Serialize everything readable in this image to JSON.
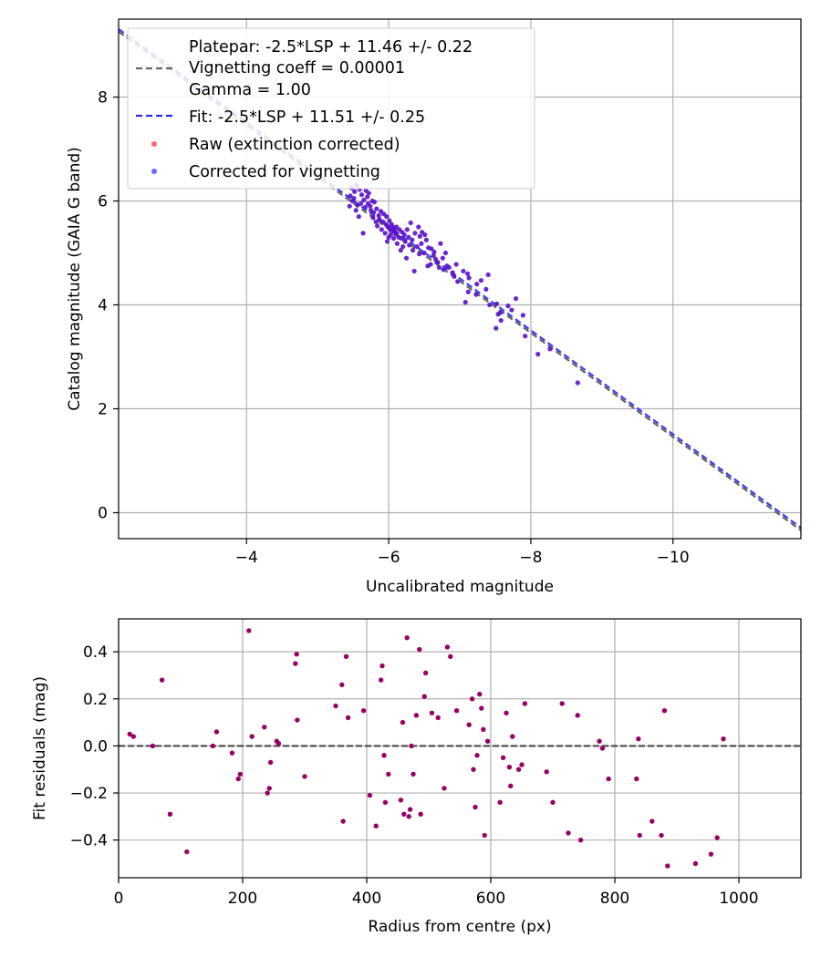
{
  "colors": {
    "raw": "#ff4444",
    "corrected": "#4444ff",
    "overlap": "#5a10c8",
    "residual": "#990066",
    "platepar_line": "#666666",
    "fit_line": "#2b2bef",
    "grid": "#b0b0b0",
    "zero_line": "#333333"
  },
  "chart_data": [
    {
      "type": "scatter",
      "xlabel": "Uncalibrated magnitude",
      "ylabel": "Catalog magnitude (GAIA G band)",
      "xlim": [
        -2.2,
        -11.8
      ],
      "ylim": [
        9.5,
        -0.5
      ],
      "x_inverted": true,
      "y_inverted": true,
      "xticks": [
        -4,
        -6,
        -8,
        -10
      ],
      "xtick_labels": [
        "−4",
        "−6",
        "−8",
        "−10"
      ],
      "yticks": [
        0,
        2,
        4,
        6,
        8
      ],
      "ytick_labels": [
        "0",
        "2",
        "4",
        "6",
        "8"
      ],
      "grid": true,
      "legend_position": "upper-left",
      "legend": [
        {
          "key": "platepar",
          "marker": "dashed-line",
          "label": "Platepar: -2.5*LSP + 11.46 +/- 0.22",
          "label_lines": [
            "Platepar: -2.5*LSP + 11.46 +/- 0.22",
            "Vignetting coeff = 0.00001",
            "Gamma = 1.00"
          ]
        },
        {
          "key": "fit",
          "marker": "dashed-line",
          "label": "Fit: -2.5*LSP + 11.51 +/- 0.25"
        },
        {
          "key": "raw",
          "marker": "dot",
          "label": "Raw (extinction corrected)"
        },
        {
          "key": "corrected",
          "marker": "dot",
          "label": "Corrected for vignetting"
        }
      ],
      "lines": [
        {
          "key": "platepar",
          "slope": 1.0,
          "intercept": 11.46,
          "style": "dashed"
        },
        {
          "key": "fit",
          "slope": 1.0,
          "intercept": 11.51,
          "style": "dashed"
        }
      ],
      "series": [
        {
          "key": "raw_and_corrected",
          "x": [
            -8.66,
            -8.27,
            -8.1,
            -7.92,
            -7.89,
            -7.79,
            -7.73,
            -7.68,
            -7.58,
            -7.57,
            -7.54,
            -7.52,
            -7.51,
            -7.42,
            -7.4,
            -7.37,
            -7.3,
            -7.24,
            -7.23,
            -7.13,
            -7.12,
            -7.11,
            -7.08,
            -7.05,
            -6.97,
            -6.95,
            -6.92,
            -6.9,
            -6.85,
            -6.82,
            -6.8,
            -6.77,
            -6.76,
            -6.73,
            -6.71,
            -6.69,
            -6.66,
            -6.64,
            -6.63,
            -6.6,
            -6.59,
            -6.56,
            -6.55,
            -6.53,
            -6.51,
            -6.5,
            -6.47,
            -6.46,
            -6.44,
            -6.43,
            -6.42,
            -6.4,
            -6.37,
            -6.36,
            -6.34,
            -6.33,
            -6.31,
            -6.29,
            -6.28,
            -6.26,
            -6.25,
            -6.23,
            -6.22,
            -6.2,
            -6.19,
            -6.18,
            -6.17,
            -6.15,
            -6.14,
            -6.12,
            -6.11,
            -6.1,
            -6.09,
            -6.08,
            -6.07,
            -6.06,
            -6.05,
            -6.04,
            -6.03,
            -6.02,
            -6.01,
            -6.0,
            -5.99,
            -5.98,
            -5.97,
            -5.96,
            -5.95,
            -5.93,
            -5.92,
            -5.9,
            -5.89,
            -5.87,
            -5.86,
            -5.84,
            -5.83,
            -5.82,
            -5.8,
            -5.79,
            -5.78,
            -5.77,
            -5.75,
            -5.74,
            -5.72,
            -5.71,
            -5.7,
            -5.68,
            -5.67,
            -5.65,
            -5.64,
            -5.62,
            -5.61,
            -5.59,
            -5.58,
            -5.56,
            -5.55,
            -5.54,
            -5.52,
            -5.51,
            -5.49,
            -5.48,
            -5.46,
            -5.45
          ],
          "y": [
            2.5,
            3.15,
            3.05,
            3.4,
            3.8,
            4.12,
            3.9,
            3.98,
            3.7,
            3.85,
            3.82,
            4.02,
            3.55,
            4.0,
            4.58,
            4.3,
            4.47,
            4.4,
            4.2,
            4.52,
            4.25,
            4.6,
            4.05,
            4.65,
            4.45,
            4.78,
            4.55,
            4.62,
            4.72,
            4.75,
            5.0,
            4.68,
            4.9,
            5.18,
            4.72,
            4.82,
            4.88,
            5.02,
            4.95,
            5.08,
            4.78,
            5.1,
            4.75,
            5.25,
            5.35,
            5.0,
            5.4,
            5.18,
            5.32,
            4.98,
            5.5,
            5.12,
            5.38,
            4.65,
            5.05,
            5.25,
            5.58,
            5.15,
            5.3,
            5.45,
            4.9,
            5.22,
            5.35,
            5.12,
            5.4,
            5.28,
            5.05,
            5.45,
            5.3,
            5.18,
            5.5,
            5.36,
            5.4,
            5.45,
            5.28,
            5.5,
            5.42,
            5.55,
            5.35,
            5.45,
            5.62,
            5.3,
            5.5,
            5.22,
            5.7,
            5.55,
            5.38,
            5.75,
            5.6,
            5.45,
            5.8,
            5.65,
            5.72,
            5.52,
            5.85,
            5.6,
            5.98,
            5.78,
            5.68,
            6.0,
            5.82,
            5.9,
            6.15,
            5.95,
            6.08,
            6.2,
            5.88,
            6.02,
            5.38,
            6.12,
            5.95,
            6.22,
            5.7,
            5.92,
            6.3,
            5.82,
            6.18,
            6.05,
            6.0,
            6.25,
            6.1,
            5.9
          ]
        }
      ]
    },
    {
      "type": "scatter",
      "xlabel": "Radius from centre (px)",
      "ylabel": "Fit residuals (mag)",
      "xlim": [
        0,
        1100
      ],
      "ylim": [
        -0.56,
        0.54
      ],
      "xticks": [
        0,
        200,
        400,
        600,
        800,
        1000
      ],
      "xtick_labels": [
        "0",
        "200",
        "400",
        "600",
        "800",
        "1000"
      ],
      "yticks": [
        -0.4,
        -0.2,
        0.0,
        0.2,
        0.4
      ],
      "ytick_labels": [
        "−0.4",
        "−0.2",
        "0.0",
        "0.2",
        "0.4"
      ],
      "grid": true,
      "reference_line": {
        "y": 0.0,
        "style": "dashed"
      },
      "series": [
        {
          "key": "residuals",
          "x": [
            18,
            24,
            55,
            70,
            83,
            110,
            152,
            158,
            183,
            193,
            196,
            210,
            215,
            235,
            240,
            243,
            245,
            255,
            258,
            285,
            287,
            288,
            300,
            350,
            360,
            362,
            367,
            370,
            395,
            405,
            415,
            423,
            425,
            428,
            430,
            435,
            455,
            458,
            460,
            465,
            468,
            470,
            472,
            475,
            480,
            485,
            487,
            493,
            495,
            505,
            515,
            525,
            530,
            535,
            545,
            565,
            570,
            572,
            575,
            578,
            582,
            585,
            588,
            590,
            595,
            615,
            620,
            625,
            630,
            632,
            635,
            645,
            650,
            655,
            690,
            700,
            715,
            725,
            740,
            745,
            780,
            775,
            790,
            835,
            838,
            840,
            860,
            875,
            880,
            885,
            930,
            955,
            965,
            975
          ],
          "y": [
            0.05,
            0.04,
            0.0,
            0.28,
            -0.29,
            -0.45,
            0.0,
            0.06,
            -0.03,
            -0.14,
            -0.12,
            0.49,
            0.04,
            0.08,
            -0.2,
            -0.18,
            -0.07,
            0.02,
            0.01,
            0.35,
            0.39,
            0.11,
            -0.13,
            0.17,
            0.26,
            -0.32,
            0.38,
            0.12,
            0.15,
            -0.21,
            -0.34,
            0.28,
            0.34,
            -0.04,
            -0.24,
            -0.12,
            -0.23,
            0.1,
            -0.29,
            0.46,
            -0.3,
            -0.27,
            0.0,
            -0.12,
            0.13,
            0.41,
            -0.29,
            0.21,
            0.31,
            0.14,
            0.12,
            -0.18,
            0.42,
            0.38,
            0.15,
            0.09,
            0.2,
            -0.1,
            -0.26,
            -0.04,
            0.22,
            0.16,
            0.07,
            -0.38,
            0.02,
            -0.24,
            -0.05,
            0.14,
            -0.09,
            -0.17,
            0.04,
            -0.1,
            -0.08,
            0.18,
            -0.11,
            -0.24,
            0.18,
            -0.37,
            0.13,
            -0.4,
            -0.01,
            0.02,
            -0.14,
            -0.14,
            0.03,
            -0.38,
            -0.32,
            -0.38,
            0.15,
            -0.51,
            -0.5,
            -0.46,
            -0.39,
            0.03
          ]
        }
      ]
    }
  ]
}
